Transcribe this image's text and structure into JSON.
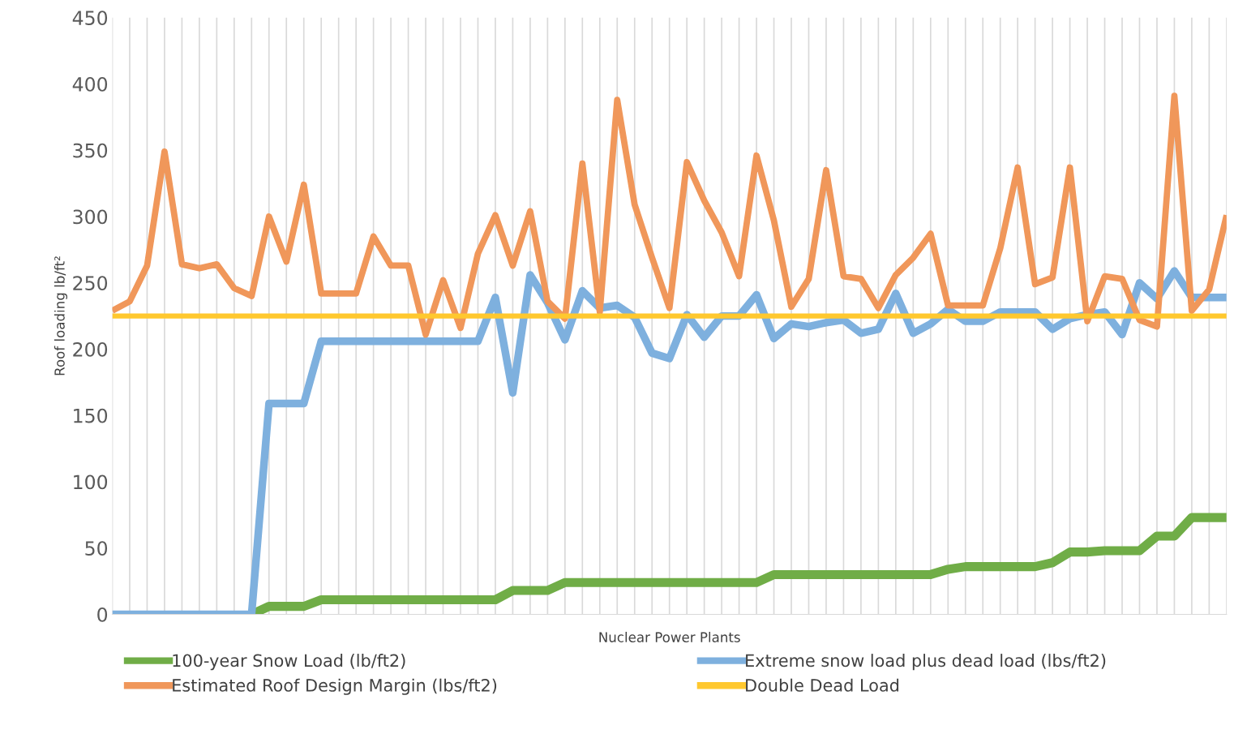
{
  "chart_data": {
    "type": "line",
    "xlabel": "Nuclear Power Plants",
    "ylabel": "Roof loading lb/ft²",
    "categories": [
      null,
      null,
      null,
      null,
      null,
      null,
      null,
      null,
      null,
      null,
      null,
      null,
      null,
      null,
      null,
      null,
      null,
      null,
      null,
      null,
      null,
      null,
      null,
      null,
      null,
      null,
      null,
      null,
      null,
      null,
      null,
      null,
      null,
      null,
      null,
      null,
      null,
      null,
      null,
      null,
      null,
      null,
      null,
      null,
      null,
      null,
      null,
      null,
      null,
      null,
      null,
      null,
      null,
      null,
      null,
      null,
      null,
      null,
      null,
      null,
      null,
      null,
      null,
      null,
      null
    ],
    "series": [
      {
        "name": "100-year Snow Load (lb/ft2)",
        "color": "#70ad47",
        "values": [
          null,
          null,
          null,
          null,
          null,
          null,
          null,
          null,
          0,
          6,
          6,
          6,
          11,
          11,
          11,
          11,
          11,
          11,
          11,
          11,
          11,
          11,
          11,
          18,
          18,
          18,
          24,
          24,
          24,
          24,
          24,
          24,
          24,
          24,
          24,
          24,
          24,
          24,
          30,
          30,
          30,
          30,
          30,
          30,
          30,
          30,
          30,
          30,
          34,
          36,
          36,
          36,
          36,
          36,
          39,
          47,
          47,
          48,
          48,
          48,
          59,
          59,
          73,
          73,
          73
        ]
      },
      {
        "name": "Extreme snow load plus dead load (lbs/ft2)",
        "color": "#7eb0de",
        "values": [
          0,
          0,
          0,
          0,
          0,
          0,
          0,
          0,
          0,
          159,
          159,
          159,
          206,
          206,
          206,
          206,
          206,
          206,
          206,
          206,
          206,
          206,
          239,
          167,
          256,
          235,
          207,
          244,
          231,
          233,
          224,
          197,
          193,
          226,
          209,
          225,
          225,
          241,
          208,
          219,
          217,
          220,
          222,
          212,
          215,
          242,
          212,
          219,
          230,
          221,
          221,
          228,
          228,
          228,
          215,
          223,
          226,
          228,
          211,
          250,
          238,
          259,
          239,
          239,
          239
        ]
      },
      {
        "name": "Estimated Roof Design Margin (lbs/ft2)",
        "color": "#f0975a",
        "values": [
          229,
          236,
          263,
          349,
          264,
          261,
          264,
          246,
          240,
          300,
          266,
          324,
          242,
          242,
          242,
          285,
          263,
          263,
          211,
          252,
          216,
          272,
          301,
          263,
          304,
          236,
          223,
          340,
          228,
          388,
          309,
          269,
          231,
          341,
          312,
          288,
          255,
          346,
          297,
          232,
          253,
          335,
          255,
          253,
          231,
          256,
          269,
          287,
          233,
          233,
          233,
          276,
          337,
          249,
          254,
          337,
          221,
          255,
          253,
          222,
          217,
          391,
          229,
          245,
          301
        ]
      },
      {
        "name": "Double Dead Load",
        "color": "#ffc82e",
        "values": [
          225,
          225,
          225,
          225,
          225,
          225,
          225,
          225,
          225,
          225,
          225,
          225,
          225,
          225,
          225,
          225,
          225,
          225,
          225,
          225,
          225,
          225,
          225,
          225,
          225,
          225,
          225,
          225,
          225,
          225,
          225,
          225,
          225,
          225,
          225,
          225,
          225,
          225,
          225,
          225,
          225,
          225,
          225,
          225,
          225,
          225,
          225,
          225,
          225,
          225,
          225,
          225,
          225,
          225,
          225,
          225,
          225,
          225,
          225,
          225,
          225,
          225,
          225,
          225,
          225
        ]
      }
    ],
    "ylim": [
      0,
      450
    ],
    "yticks": [
      0,
      50,
      100,
      150,
      200,
      250,
      300,
      350,
      400,
      450
    ],
    "grid": "x",
    "legend": "bottom",
    "marker": "none",
    "line_style": "solid"
  }
}
